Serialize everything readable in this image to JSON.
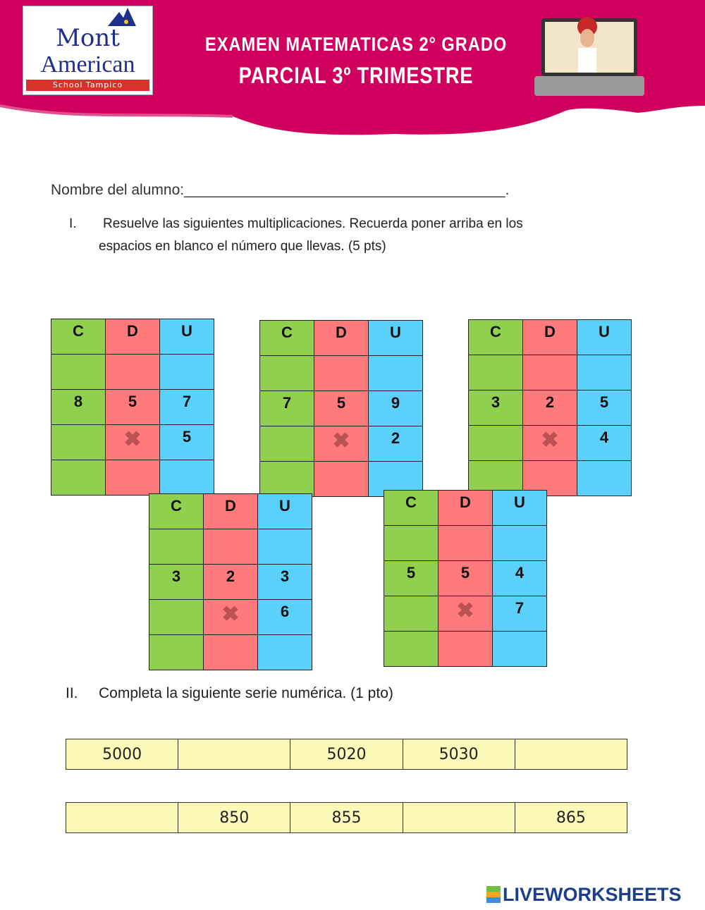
{
  "header": {
    "logo": {
      "line1": "Mont",
      "line2": "American",
      "line3": "School Tampico"
    },
    "title1": "EXAMEN MATEMATICAS 2° GRADO",
    "title2": "PARCIAL 3º TRIMESTRE",
    "colors": {
      "banner": "#d0005f"
    }
  },
  "student_label": "Nombre del alumno:_______________________________________.",
  "q1": {
    "num": "I.",
    "text1": "Resuelve las siguientes multiplicaciones. Recuerda poner arriba en los",
    "text2": "espacios en blanco el número que llevas. (5 pts)"
  },
  "cdu_headers": [
    "C",
    "D",
    "U"
  ],
  "multiplications": [
    {
      "top": [
        "8",
        "5",
        "7"
      ],
      "multiplier": "5"
    },
    {
      "top": [
        "7",
        "5",
        "9"
      ],
      "multiplier": "2"
    },
    {
      "top": [
        "3",
        "2",
        "5"
      ],
      "multiplier": "4"
    },
    {
      "top": [
        "3",
        "2",
        "3"
      ],
      "multiplier": "6"
    },
    {
      "top": [
        "5",
        "5",
        "4"
      ],
      "multiplier": "7"
    }
  ],
  "times_symbol": "✖",
  "q2": {
    "num": "II.",
    "text": "Completa la siguiente serie numérica. (1 pto)"
  },
  "series": [
    [
      "5000",
      "",
      "5020",
      "5030",
      ""
    ],
    [
      "",
      "850",
      "855",
      "",
      "865"
    ]
  ],
  "footer": {
    "brand": "LIVEWORKSHEETS"
  }
}
